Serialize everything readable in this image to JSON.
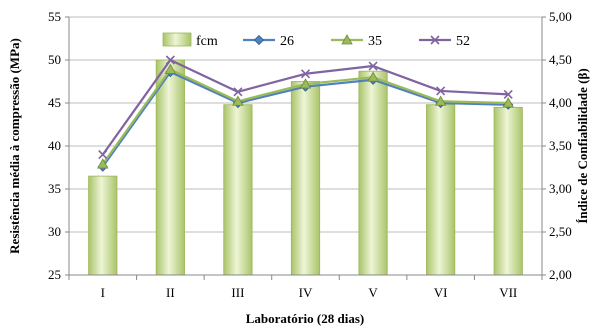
{
  "chart_data": {
    "type": "bar",
    "categories": [
      "I",
      "II",
      "III",
      "IV",
      "V",
      "VI",
      "VII"
    ],
    "xlabel": "Laboratório (28 dias)",
    "ylabel": "Resistência média à compressão (MPa)",
    "y2label": "Índice de Confiabilidade (β)",
    "ylim": [
      25,
      55
    ],
    "y2lim": [
      2.0,
      5.0
    ],
    "yticks": [
      "25",
      "30",
      "35",
      "40",
      "45",
      "50",
      "55"
    ],
    "y2ticks": [
      "2,00",
      "2,50",
      "3,00",
      "3,50",
      "4,00",
      "4,50",
      "5,00"
    ],
    "grid": true,
    "legend_position": "top",
    "bar_series": {
      "name": "fcm",
      "values": [
        36.5,
        50.0,
        44.8,
        47.5,
        48.7,
        44.8,
        44.5
      ],
      "color": "#c6d98f"
    },
    "line_series": [
      {
        "name": "26",
        "axis": "secondary",
        "values": [
          3.26,
          4.36,
          4.0,
          4.19,
          4.27,
          4.0,
          3.98
        ],
        "color": "#4f81bd",
        "marker": "diamond"
      },
      {
        "name": "35",
        "axis": "secondary",
        "values": [
          3.29,
          4.39,
          4.02,
          4.22,
          4.3,
          4.02,
          4.0
        ],
        "color": "#9bbb59",
        "marker": "triangle"
      },
      {
        "name": "52",
        "axis": "secondary",
        "values": [
          3.4,
          4.5,
          4.13,
          4.34,
          4.43,
          4.14,
          4.1
        ],
        "color": "#8064a2",
        "marker": "x"
      }
    ]
  }
}
